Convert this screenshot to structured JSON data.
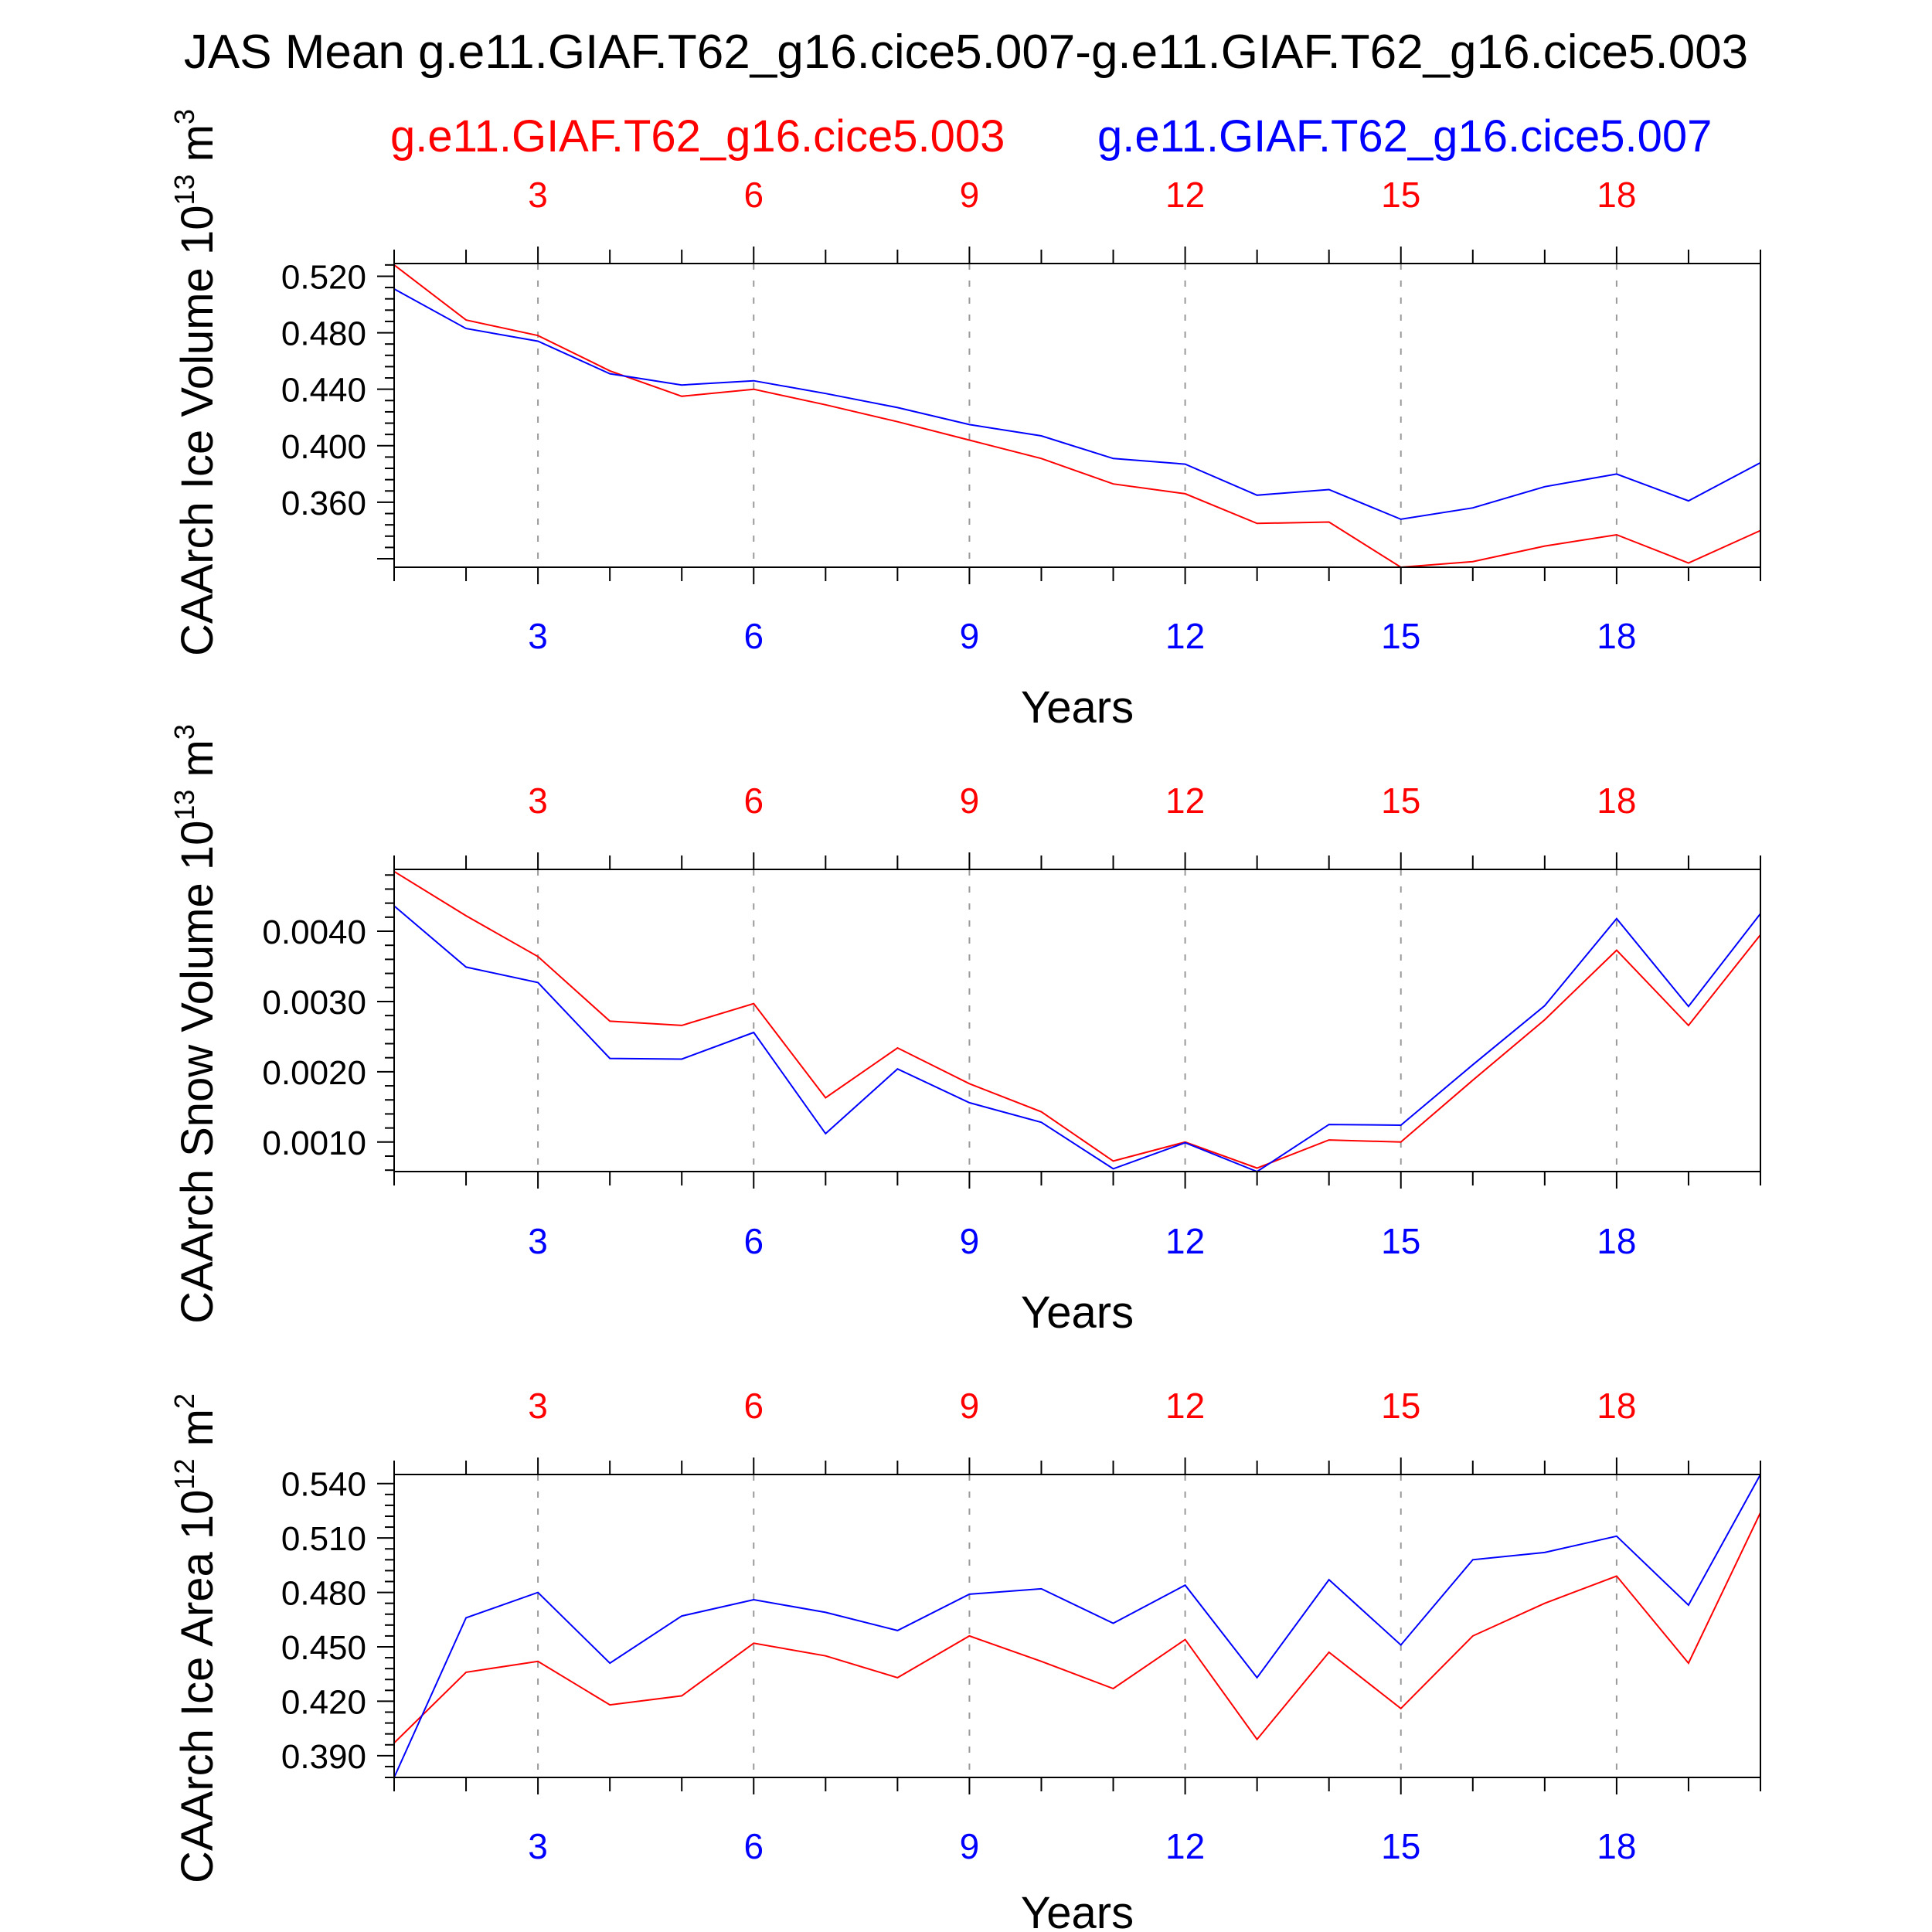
{
  "figure": {
    "title": "JAS Mean g.e11.GIAF.T62_g16.cice5.007-g.e11.GIAF.T62_g16.cice5.003",
    "legend": [
      {
        "name": "g.e11.GIAF.T62_g16.cice5.003",
        "color": "#ff0000"
      },
      {
        "name": "g.e11.GIAF.T62_g16.cice5.007",
        "color": "#0000ff"
      }
    ]
  },
  "chart_data": [
    {
      "type": "line",
      "ylabel": "CAArch Ice Volume 10^13 m^3",
      "xlabel": "Years",
      "xlim": [
        1,
        20
      ],
      "ylim": [
        0.314,
        0.529
      ],
      "yticks": [
        "0.360",
        "0.400",
        "0.440",
        "0.480",
        "0.520"
      ],
      "ytick_values": [
        0.36,
        0.4,
        0.44,
        0.48,
        0.52
      ],
      "xticks": [
        3,
        6,
        9,
        12,
        15,
        18
      ],
      "x": [
        1,
        2,
        3,
        4,
        5,
        6,
        7,
        8,
        9,
        10,
        11,
        12,
        13,
        14,
        15,
        16,
        17,
        18,
        19,
        20
      ],
      "series": [
        {
          "name": "g.e11.GIAF.T62_g16.cice5.003",
          "color": "#ff0000",
          "values": [
            0.528,
            0.489,
            0.478,
            0.453,
            0.435,
            0.44,
            0.429,
            0.417,
            0.404,
            0.391,
            0.373,
            0.366,
            0.345,
            0.346,
            0.314,
            0.318,
            0.329,
            0.337,
            0.317,
            0.34
          ]
        },
        {
          "name": "g.e11.GIAF.T62_g16.cice5.007",
          "color": "#0000ff",
          "values": [
            0.511,
            0.483,
            0.474,
            0.451,
            0.443,
            0.446,
            0.437,
            0.427,
            0.415,
            0.407,
            0.391,
            0.387,
            0.365,
            0.369,
            0.348,
            0.356,
            0.371,
            0.38,
            0.361,
            0.388
          ]
        }
      ]
    },
    {
      "type": "line",
      "ylabel": "CAArch Snow Volume 10^13 m^3",
      "xlabel": "Years",
      "xlim": [
        1,
        20
      ],
      "ylim": [
        0.00058,
        0.00488
      ],
      "yticks": [
        "0.0010",
        "0.0020",
        "0.0030",
        "0.0040"
      ],
      "ytick_values": [
        0.001,
        0.002,
        0.003,
        0.004
      ],
      "xticks": [
        3,
        6,
        9,
        12,
        15,
        18
      ],
      "x": [
        1,
        2,
        3,
        4,
        5,
        6,
        7,
        8,
        9,
        10,
        11,
        12,
        13,
        14,
        15,
        16,
        17,
        18,
        19,
        20
      ],
      "series": [
        {
          "name": "g.e11.GIAF.T62_g16.cice5.003",
          "color": "#ff0000",
          "values": [
            0.00485,
            0.00422,
            0.00364,
            0.00272,
            0.00266,
            0.00297,
            0.00163,
            0.00234,
            0.00183,
            0.00143,
            0.00073,
            0.001,
            0.00063,
            0.00103,
            0.001,
            0.00188,
            0.00274,
            0.00373,
            0.00266,
            0.00395
          ]
        },
        {
          "name": "g.e11.GIAF.T62_g16.cice5.007",
          "color": "#0000ff",
          "values": [
            0.00436,
            0.00349,
            0.00327,
            0.00219,
            0.00218,
            0.00256,
            0.00112,
            0.00204,
            0.00156,
            0.00128,
            0.00062,
            0.00099,
            0.00058,
            0.00125,
            0.00124,
            0.0021,
            0.00294,
            0.00418,
            0.00293,
            0.00425
          ]
        }
      ]
    },
    {
      "type": "line",
      "ylabel": "CAArch Ice Area 10^12 m^2",
      "xlabel": "Years",
      "xlim": [
        1,
        20
      ],
      "ylim": [
        0.378,
        0.545
      ],
      "yticks": [
        "0.390",
        "0.420",
        "0.450",
        "0.480",
        "0.510",
        "0.540"
      ],
      "ytick_values": [
        0.39,
        0.42,
        0.45,
        0.48,
        0.51,
        0.54
      ],
      "xticks": [
        3,
        6,
        9,
        12,
        15,
        18
      ],
      "x": [
        1,
        2,
        3,
        4,
        5,
        6,
        7,
        8,
        9,
        10,
        11,
        12,
        13,
        14,
        15,
        16,
        17,
        18,
        19,
        20
      ],
      "series": [
        {
          "name": "g.e11.GIAF.T62_g16.cice5.003",
          "color": "#ff0000",
          "values": [
            0.397,
            0.436,
            0.442,
            0.418,
            0.423,
            0.452,
            0.445,
            0.433,
            0.456,
            0.442,
            0.427,
            0.454,
            0.399,
            0.447,
            0.416,
            0.456,
            0.474,
            0.489,
            0.441,
            0.524
          ]
        },
        {
          "name": "g.e11.GIAF.T62_g16.cice5.007",
          "color": "#0000ff",
          "values": [
            0.378,
            0.466,
            0.48,
            0.441,
            0.467,
            0.476,
            0.469,
            0.459,
            0.479,
            0.482,
            0.463,
            0.484,
            0.433,
            0.487,
            0.451,
            0.498,
            0.502,
            0.511,
            0.473,
            0.545
          ]
        }
      ]
    }
  ]
}
